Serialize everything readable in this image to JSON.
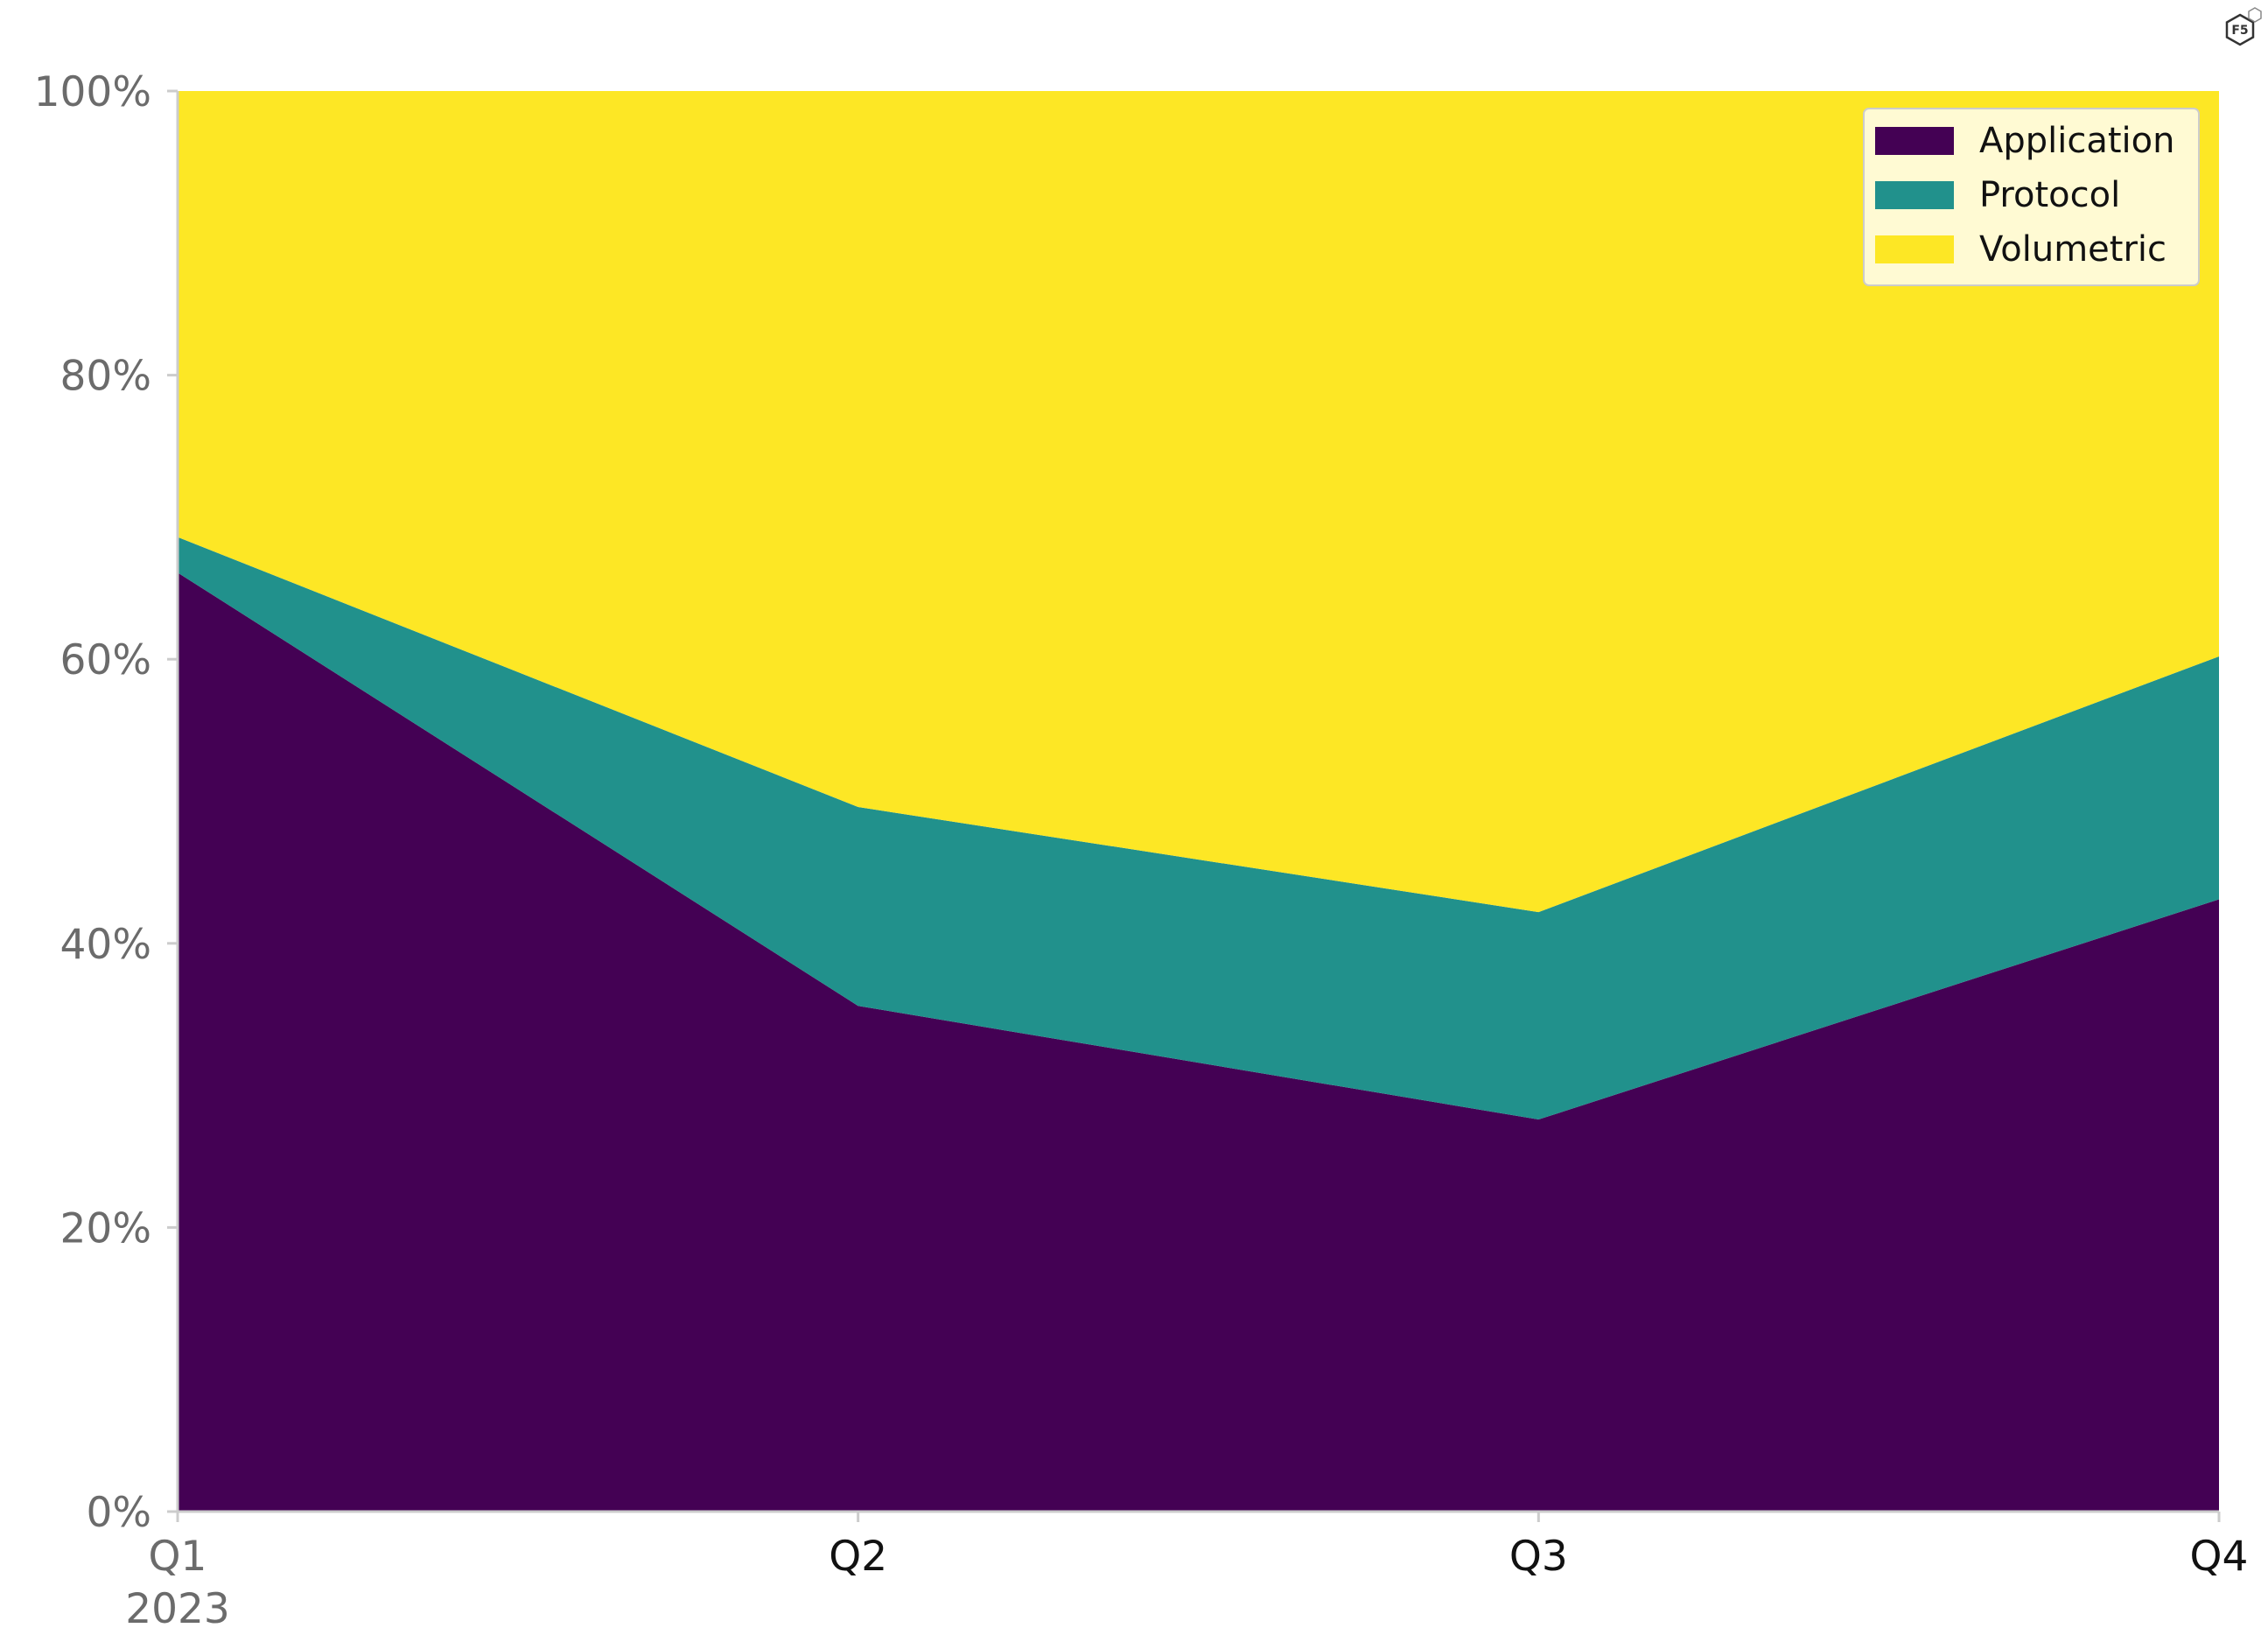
{
  "chart_data": {
    "type": "area",
    "stacked": true,
    "normalized": true,
    "categories": [
      "Q1",
      "Q2",
      "Q3",
      "Q4"
    ],
    "category_sublabels": [
      "2023",
      "",
      "",
      ""
    ],
    "series": [
      {
        "name": "Application",
        "color": "#440154",
        "values": [
          66.1,
          35.6,
          27.6,
          43.1
        ]
      },
      {
        "name": "Protocol",
        "color": "#21918c",
        "values": [
          2.5,
          14.0,
          14.6,
          17.1
        ]
      },
      {
        "name": "Volumetric",
        "color": "#fde725",
        "values": [
          31.4,
          50.4,
          57.8,
          39.8
        ]
      }
    ],
    "ylim": [
      0,
      100
    ],
    "yticks": [
      0,
      20,
      40,
      60,
      80,
      100
    ],
    "ytick_labels": [
      "0%",
      "20%",
      "40%",
      "60%",
      "80%",
      "100%"
    ],
    "legend_position": "top-right",
    "grid": false
  },
  "logo": {
    "text": "F5"
  }
}
